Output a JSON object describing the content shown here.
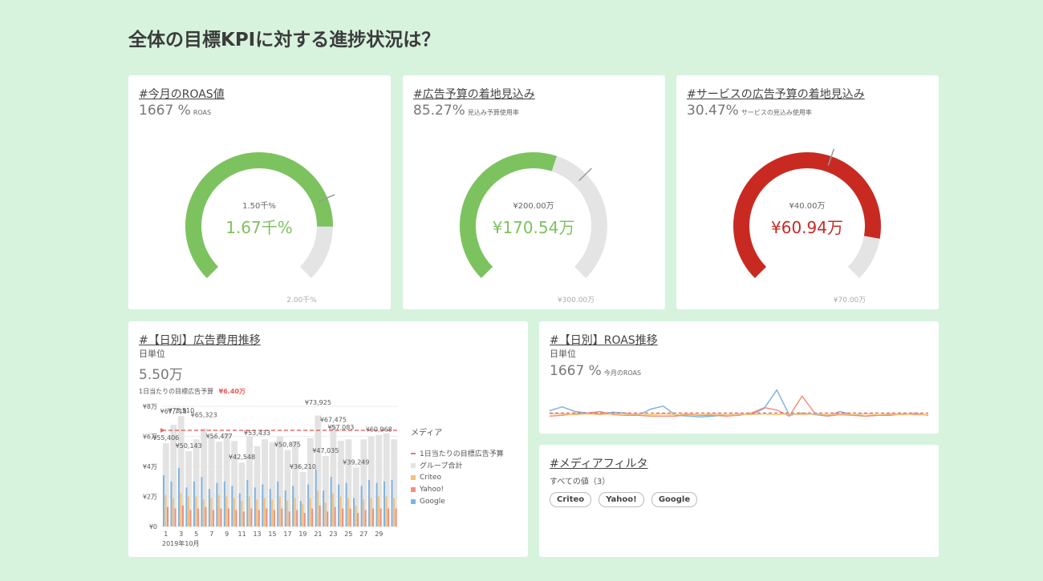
{
  "page": {
    "title": "全体の目標KPIに対する進捗状況は？"
  },
  "roas_card": {
    "title": "#今月のROAS値",
    "kpi_value": "1667 %",
    "kpi_unit": "ROAS",
    "gauge": {
      "target_label": "1.50千%",
      "value_label": "1.67千%",
      "max_label": "2.00千%",
      "fraction": 0.835,
      "target_fraction": 0.75,
      "color": "#7cc35f"
    }
  },
  "budget_card": {
    "title": "#広告予算の着地見込み",
    "kpi_value": "85.27%",
    "kpi_unit": "見込み予算使用率",
    "gauge": {
      "target_label": "¥200.00万",
      "value_label": "¥170.54万",
      "max_label": "¥300.00万",
      "fraction": 0.568,
      "target_fraction": 0.667,
      "color": "#7cc35f"
    }
  },
  "service_card": {
    "title": "#サービスの広告予算の着地見込み",
    "kpi_value": "30.47%",
    "kpi_unit": "サービスの見込み使用率",
    "gauge": {
      "target_label": "¥40.00万",
      "value_label": "¥60.94万",
      "max_label": "¥70.00万",
      "fraction": 0.87,
      "target_fraction": 0.571,
      "color": "#c82a22"
    }
  },
  "cost_card": {
    "title": "#【日別】広告費用推移",
    "unit": "日単位",
    "kpi_value": "5.50万",
    "target_text": "1日当たりの目標広告予算",
    "target_value": "¥6.40万"
  },
  "roas_trend_card": {
    "title": "#【日別】ROAS推移",
    "unit": "日単位",
    "kpi_value": "1667 %",
    "kpi_unit": "今月のROAS"
  },
  "filter_card": {
    "title": "#メディアフィルタ",
    "subtitle": "すべての値（3）",
    "chips": [
      "Criteo",
      "Yahoo!",
      "Google"
    ]
  },
  "chart_data": [
    {
      "type": "bar",
      "title": "#【日別】広告費用推移",
      "xlabel": "2019年10月",
      "x_ticks": [
        "1",
        "3",
        "5",
        "7",
        "9",
        "11",
        "13",
        "15",
        "17",
        "19",
        "21",
        "23",
        "25",
        "27",
        "29"
      ],
      "y_ticks": [
        "¥0",
        "¥2万",
        "¥4万",
        "¥6万",
        "¥8万"
      ],
      "ylim": [
        0,
        80000
      ],
      "legend_title": "メディア",
      "legend": [
        {
          "name": "1日当たりの目標広告予算",
          "color": "#e86b6b",
          "kind": "line"
        },
        {
          "name": "グループ合計",
          "color": "#e3e3e3",
          "kind": "bar"
        },
        {
          "name": "Criteo",
          "color": "#f5c074",
          "kind": "bar"
        },
        {
          "name": "Yahoo!",
          "color": "#f0907f",
          "kind": "bar"
        },
        {
          "name": "Google",
          "color": "#7fb4df",
          "kind": "bar"
        }
      ],
      "target_line": 64000,
      "days": [
        1,
        2,
        3,
        4,
        5,
        6,
        7,
        8,
        9,
        10,
        11,
        12,
        13,
        14,
        15,
        16,
        17,
        18,
        19,
        20,
        21,
        22,
        23,
        24,
        25,
        26,
        27,
        28,
        29,
        30,
        31
      ],
      "totals": [
        55406,
        67718,
        73510,
        50143,
        58000,
        65323,
        60000,
        56477,
        62000,
        57000,
        42548,
        60000,
        53433,
        58000,
        56000,
        60000,
        50875,
        57000,
        36210,
        59000,
        73925,
        47035,
        67475,
        57083,
        58000,
        39249,
        58000,
        60000,
        60968,
        62000,
        58000
      ],
      "series": [
        {
          "name": "Google",
          "values": [
            34000,
            30000,
            39000,
            26000,
            30000,
            33000,
            25000,
            29000,
            30000,
            27000,
            22000,
            31000,
            26000,
            28000,
            25000,
            30000,
            24000,
            27000,
            17000,
            28000,
            38000,
            24000,
            33000,
            28000,
            29000,
            19000,
            27000,
            31000,
            29000,
            30000,
            31000
          ]
        },
        {
          "name": "Criteo",
          "values": [
            21000,
            19000,
            22000,
            20000,
            20000,
            18000,
            19000,
            21000,
            20000,
            19000,
            17000,
            20000,
            18000,
            19000,
            18000,
            20000,
            17000,
            19000,
            15000,
            19000,
            24000,
            16000,
            22000,
            20000,
            19000,
            14000,
            18000,
            19000,
            20000,
            20000,
            19000
          ]
        },
        {
          "name": "Yahoo!",
          "values": [
            13000,
            12000,
            14000,
            11000,
            12000,
            13000,
            11000,
            12000,
            12000,
            11000,
            10000,
            12000,
            11000,
            12000,
            11000,
            12000,
            10000,
            11000,
            9000,
            12000,
            14000,
            10000,
            13000,
            12000,
            12000,
            9000,
            11000,
            12000,
            12000,
            12000,
            12000
          ]
        }
      ],
      "annotations": [
        {
          "day": 1,
          "label": "¥55,406"
        },
        {
          "day": 2,
          "label": "¥67,718"
        },
        {
          "day": 3,
          "label": "¥73,510"
        },
        {
          "day": 4,
          "label": "¥50,143"
        },
        {
          "day": 6,
          "label": "¥65,323"
        },
        {
          "day": 8,
          "label": "¥56,477"
        },
        {
          "day": 11,
          "label": "¥42,548"
        },
        {
          "day": 13,
          "label": "¥53,433"
        },
        {
          "day": 17,
          "label": "¥50,875"
        },
        {
          "day": 19,
          "label": "¥36,210"
        },
        {
          "day": 21,
          "label": "¥73,925"
        },
        {
          "day": 22,
          "label": "¥47,035"
        },
        {
          "day": 23,
          "label": "¥67,475"
        },
        {
          "day": 24,
          "label": "¥57,083"
        },
        {
          "day": 26,
          "label": "¥39,249"
        },
        {
          "day": 29,
          "label": "¥60,968"
        }
      ]
    },
    {
      "type": "line",
      "title": "#【日別】ROAS推移",
      "ylim": [
        0,
        5000
      ],
      "series": [
        {
          "name": "Google",
          "color": "#7fb4df",
          "values": [
            1300,
            1800,
            1200,
            1000,
            900,
            1100,
            1000,
            700,
            1500,
            1900,
            700,
            600,
            500,
            600,
            800,
            900,
            800,
            1600,
            4000,
            700,
            1000,
            800,
            600,
            1200,
            800,
            600,
            700,
            900,
            800,
            1000,
            700
          ]
        },
        {
          "name": "Yahoo!",
          "color": "#f0907f",
          "values": [
            600,
            700,
            900,
            1000,
            1200,
            800,
            700,
            700,
            600,
            600,
            600,
            800,
            700,
            700,
            600,
            700,
            1000,
            1700,
            1400,
            600,
            3200,
            1000,
            600,
            800,
            700,
            600,
            700,
            700,
            900,
            800,
            800
          ]
        },
        {
          "name": "Criteo",
          "color": "#f5c074",
          "values": [
            900,
            900,
            800,
            900,
            800,
            900,
            800,
            900,
            800,
            900,
            800,
            900,
            800,
            900,
            800,
            900,
            800,
            900,
            800,
            900,
            800,
            900,
            800,
            900,
            800,
            900,
            800,
            900,
            800,
            900,
            800
          ]
        }
      ],
      "target_line": 1000
    }
  ]
}
